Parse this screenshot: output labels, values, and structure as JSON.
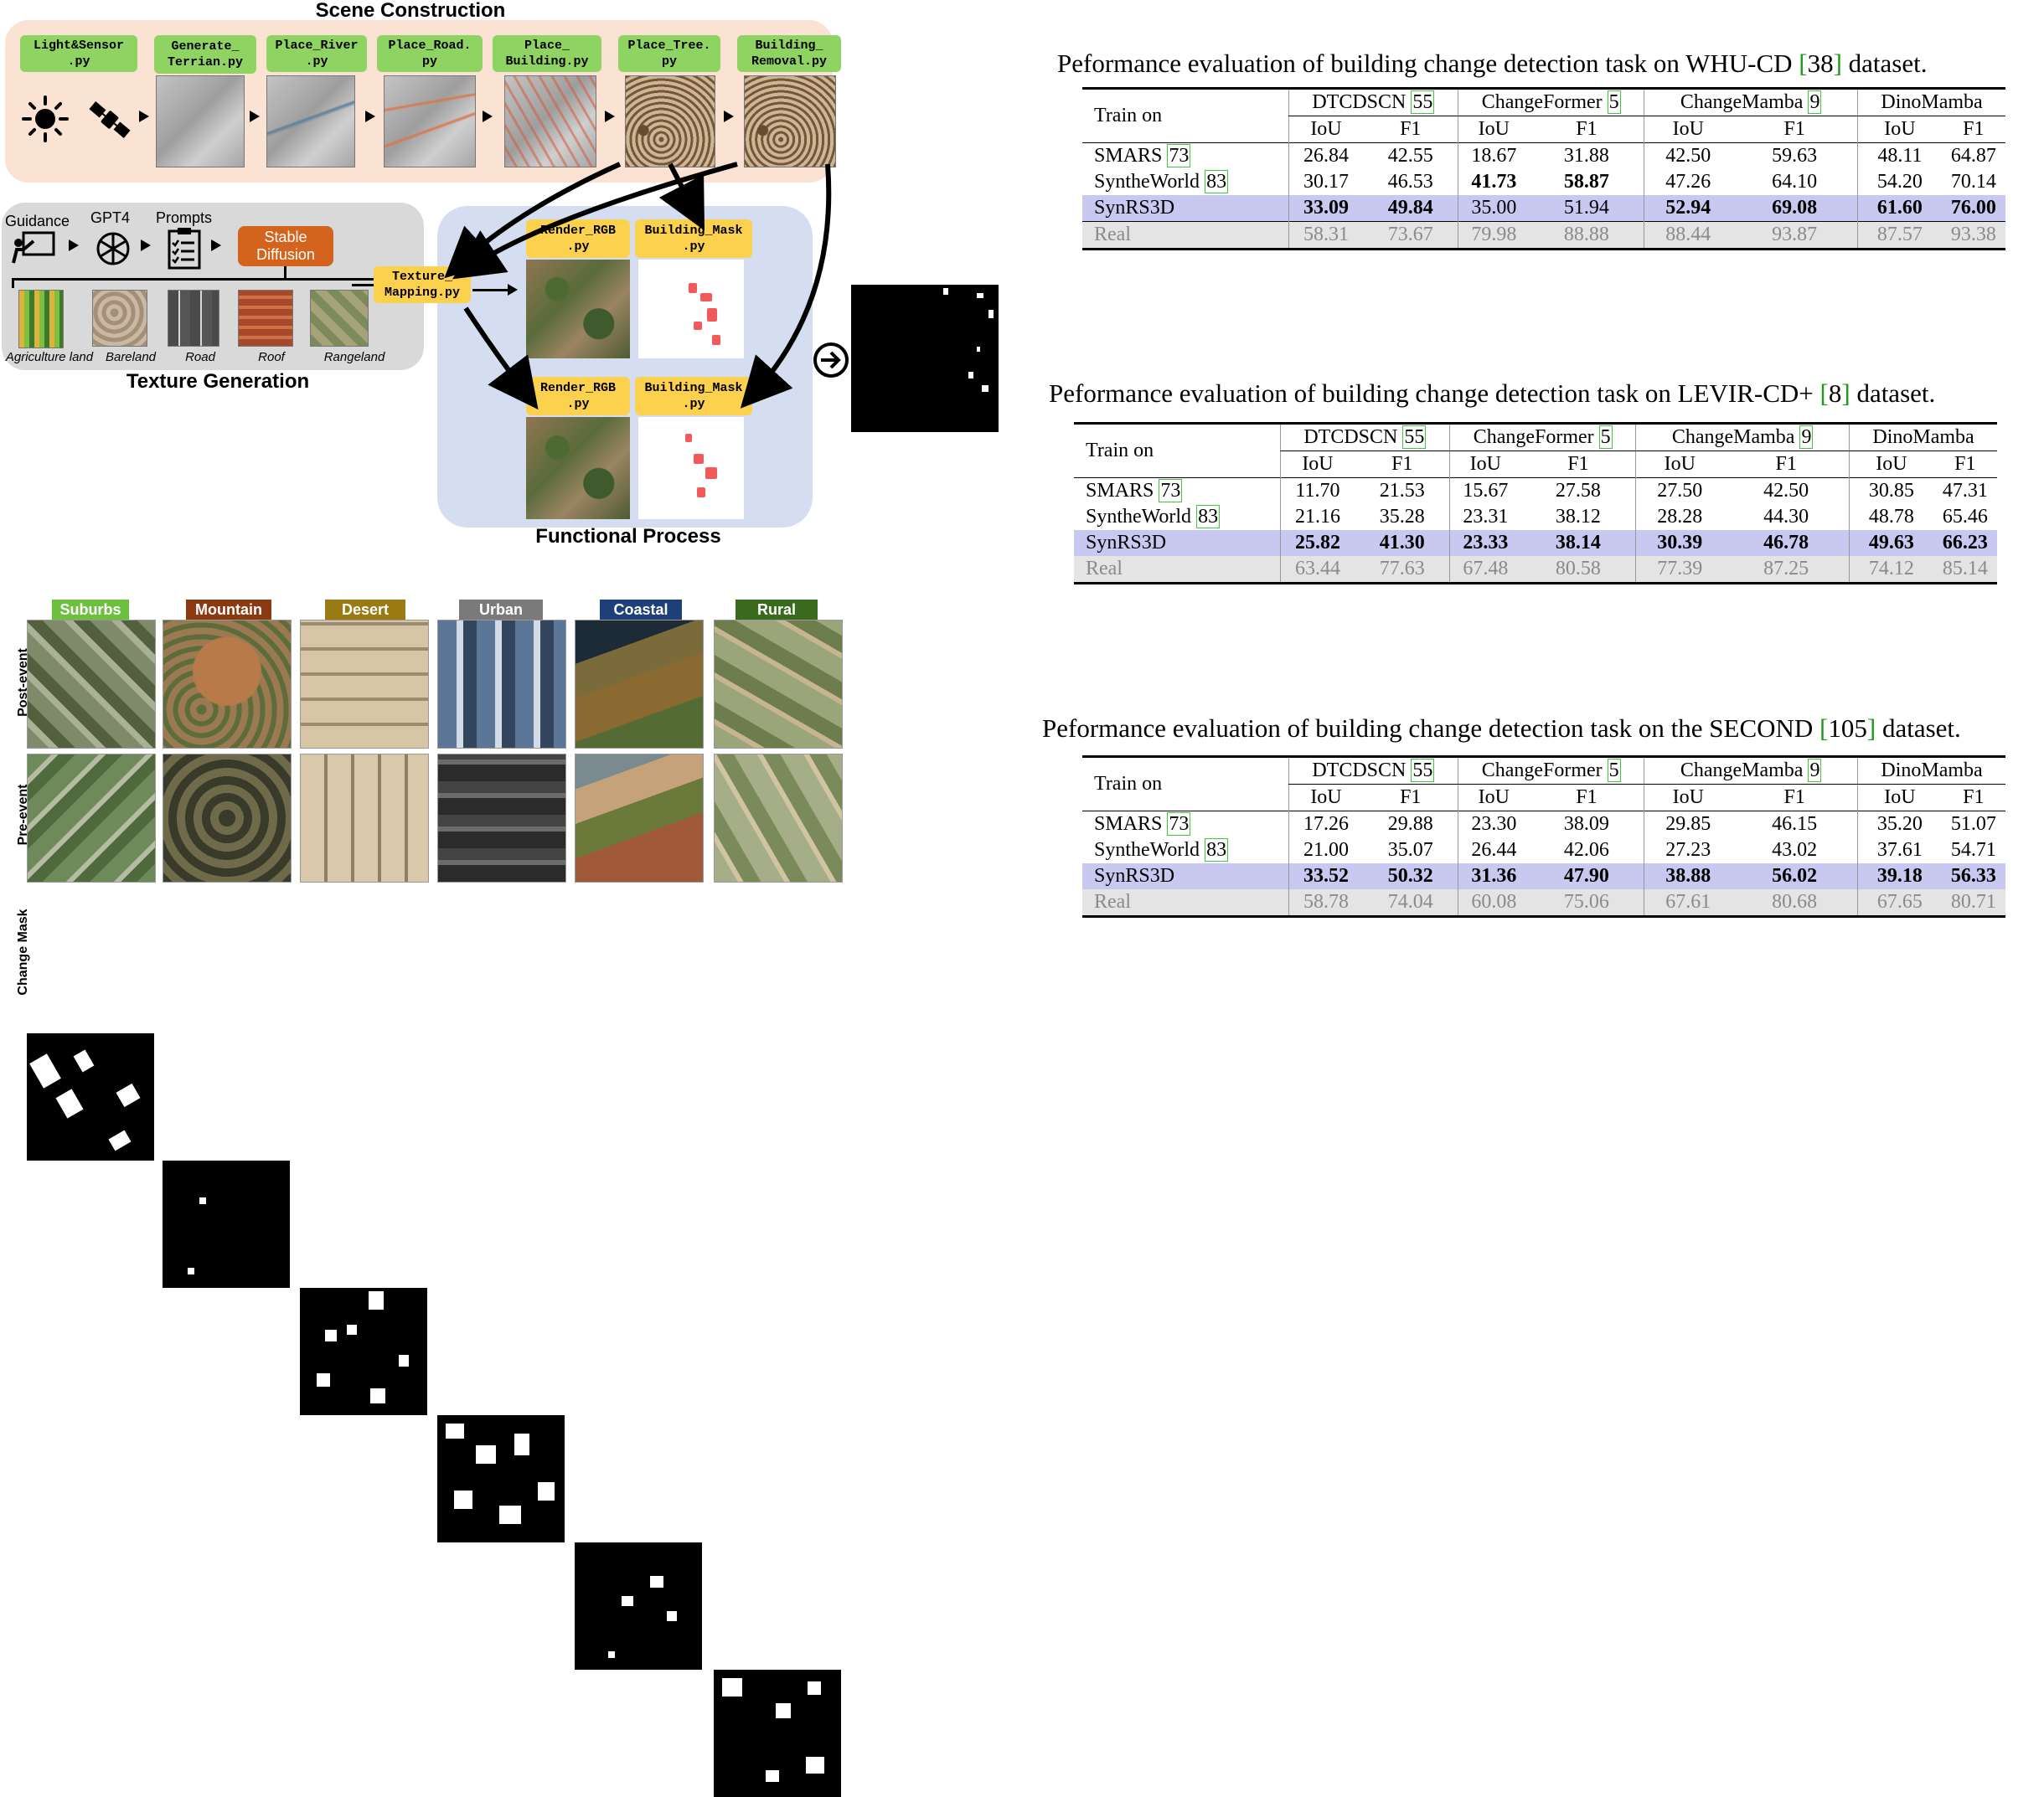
{
  "figure": {
    "scene_title": "Scene Construction",
    "texture_title": "Texture Generation",
    "functional_title": "Functional Process",
    "scripts": [
      "Light&Sensor\n.py",
      "Generate_\nTerrian.py",
      "Place_River\n.py",
      "Place_Road.\npy",
      "Place_\nBuilding.py",
      "Place_Tree.\npy",
      "Building_\nRemoval.py"
    ],
    "texture_mapping": "Texture_\nMapping.py",
    "render_rgb": "Render_RGB\n.py",
    "building_mask": "Building_Mask\n.py",
    "guidance": "Guidance",
    "gpt4": "GPT4",
    "prompts": "Prompts",
    "stable_diffusion": "Stable\nDiffusion",
    "textures": [
      "Agriculture land",
      "Bareland",
      "Road",
      "Roof",
      "Rangeland"
    ],
    "categories": [
      {
        "name": "Suburbs",
        "color": "#6fbf3f"
      },
      {
        "name": "Mountain",
        "color": "#8a3a12"
      },
      {
        "name": "Desert",
        "color": "#9a7a12"
      },
      {
        "name": "Urban",
        "color": "#7a7a7a"
      },
      {
        "name": "Coastal",
        "color": "#1e3f78"
      },
      {
        "name": "Rural",
        "color": "#3a6a1e"
      }
    ],
    "row_labels": [
      "Post-event",
      "Pre-event",
      "Change Mask"
    ]
  },
  "tables": [
    {
      "title_pre": "Peformance evaluation of building change detection task on WHU-CD ",
      "title_ref": "38",
      "title_post": " dataset.",
      "train_on": "Train on",
      "methods": [
        {
          "name": "DTCDSCN ",
          "ref": "55"
        },
        {
          "name": "ChangeFormer ",
          "ref": "5"
        },
        {
          "name": "ChangeMamba ",
          "ref": "9"
        },
        {
          "name": "DinoMamba",
          "ref": ""
        }
      ],
      "metrics": [
        "IoU",
        "F1",
        "IoU",
        "F1",
        "IoU",
        "F1",
        "IoU",
        "F1"
      ],
      "rows": [
        {
          "name": "SMARS ",
          "ref": "73",
          "values": [
            "26.84",
            "42.55",
            "18.67",
            "31.88",
            "42.50",
            "59.63",
            "48.11",
            "64.87"
          ]
        },
        {
          "name": "SyntheWorld ",
          "ref": "83",
          "values": [
            "30.17",
            "46.53",
            "41.73",
            "58.87",
            "47.26",
            "64.10",
            "54.20",
            "70.14"
          ]
        },
        {
          "name": "SynRS3D",
          "ref": "",
          "values": [
            "33.09",
            "49.84",
            "35.00",
            "51.94",
            "52.94",
            "69.08",
            "61.60",
            "76.00"
          ]
        },
        {
          "name": "Real",
          "ref": "",
          "values": [
            "58.31",
            "73.67",
            "79.98",
            "88.88",
            "88.44",
            "93.87",
            "87.57",
            "93.38"
          ]
        }
      ]
    },
    {
      "title_pre": "Peformance evaluation of building change detection task on LEVIR-CD+ ",
      "title_ref": "8",
      "title_post": " dataset.",
      "train_on": "Train on",
      "methods": [
        {
          "name": "DTCDSCN ",
          "ref": "55"
        },
        {
          "name": "ChangeFormer ",
          "ref": "5"
        },
        {
          "name": "ChangeMamba ",
          "ref": "9"
        },
        {
          "name": "DinoMamba",
          "ref": ""
        }
      ],
      "metrics": [
        "IoU",
        "F1",
        "IoU",
        "F1",
        "IoU",
        "F1",
        "IoU",
        "F1"
      ],
      "rows": [
        {
          "name": "SMARS ",
          "ref": "73",
          "values": [
            "11.70",
            "21.53",
            "15.67",
            "27.58",
            "27.50",
            "42.50",
            "30.85",
            "47.31"
          ]
        },
        {
          "name": "SyntheWorld ",
          "ref": "83",
          "values": [
            "21.16",
            "35.28",
            "23.31",
            "38.12",
            "28.28",
            "44.30",
            "48.78",
            "65.46"
          ]
        },
        {
          "name": "SynRS3D",
          "ref": "",
          "values": [
            "25.82",
            "41.30",
            "23.33",
            "38.14",
            "30.39",
            "46.78",
            "49.63",
            "66.23"
          ]
        },
        {
          "name": "Real",
          "ref": "",
          "values": [
            "63.44",
            "77.63",
            "67.48",
            "80.58",
            "77.39",
            "87.25",
            "74.12",
            "85.14"
          ]
        }
      ]
    },
    {
      "title_pre": "Peformance evaluation of building change detection task on the SECOND ",
      "title_ref": "105",
      "title_post": " dataset.",
      "train_on": "Train on",
      "methods": [
        {
          "name": "DTCDSCN ",
          "ref": "55"
        },
        {
          "name": "ChangeFormer ",
          "ref": "5"
        },
        {
          "name": "ChangeMamba ",
          "ref": "9"
        },
        {
          "name": "DinoMamba",
          "ref": ""
        }
      ],
      "metrics": [
        "IoU",
        "F1",
        "IoU",
        "F1",
        "IoU",
        "F1",
        "IoU",
        "F1"
      ],
      "rows": [
        {
          "name": "SMARS ",
          "ref": "73",
          "values": [
            "17.26",
            "29.88",
            "23.30",
            "38.09",
            "29.85",
            "46.15",
            "35.20",
            "51.07"
          ]
        },
        {
          "name": "SyntheWorld ",
          "ref": "83",
          "values": [
            "21.00",
            "35.07",
            "26.44",
            "42.06",
            "27.23",
            "43.02",
            "37.61",
            "54.71"
          ]
        },
        {
          "name": "SynRS3D",
          "ref": "",
          "values": [
            "33.52",
            "50.32",
            "31.36",
            "47.90",
            "38.88",
            "56.02",
            "39.18",
            "56.33"
          ]
        },
        {
          "name": "Real",
          "ref": "",
          "values": [
            "58.78",
            "74.04",
            "60.08",
            "75.06",
            "67.61",
            "80.68",
            "67.65",
            "80.71"
          ]
        }
      ]
    }
  ]
}
